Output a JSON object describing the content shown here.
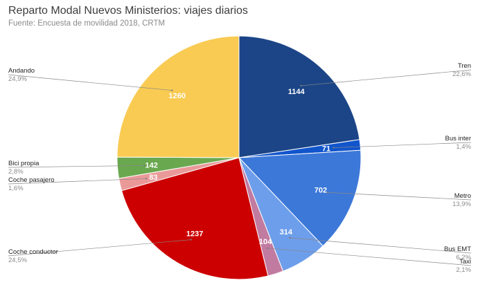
{
  "chart_data": {
    "type": "pie",
    "title": "Reparto Modal Nuevos Ministerios: viajes diarios",
    "subtitle": "Fuente: Encuesta de movilidad 2018, CRTM",
    "slices": [
      {
        "label": "Tren",
        "value": 1144,
        "percent": "22,6%",
        "color": "#1c4587",
        "side": "right"
      },
      {
        "label": "Bus inter",
        "value": 71,
        "percent": "1,4%",
        "color": "#1155cc",
        "side": "right"
      },
      {
        "label": "Metro",
        "value": 702,
        "percent": "13,9%",
        "color": "#3c78d8",
        "side": "right"
      },
      {
        "label": "Bus EMT",
        "value": 314,
        "percent": "6,2%",
        "color": "#6d9eeb",
        "side": "right"
      },
      {
        "label": "Taxi",
        "value": 104,
        "percent": "2,1%",
        "color": "#c27ba0",
        "side": "right"
      },
      {
        "label": "Coche conductor",
        "value": 1237,
        "percent": "24,5%",
        "color": "#cc0000",
        "side": "left"
      },
      {
        "label": "Coche pasajero",
        "value": 83,
        "percent": "1,6%",
        "color": "#ea9999",
        "side": "left"
      },
      {
        "label": "Bici propia",
        "value": 142,
        "percent": "2,8%",
        "color": "#6aa84f",
        "side": "left"
      },
      {
        "label": "Andando",
        "value": 1260,
        "percent": "24,9%",
        "color": "#f9cb53",
        "side": "left"
      }
    ],
    "legend": "leader labels on both sides",
    "start": "top, clockwise"
  }
}
